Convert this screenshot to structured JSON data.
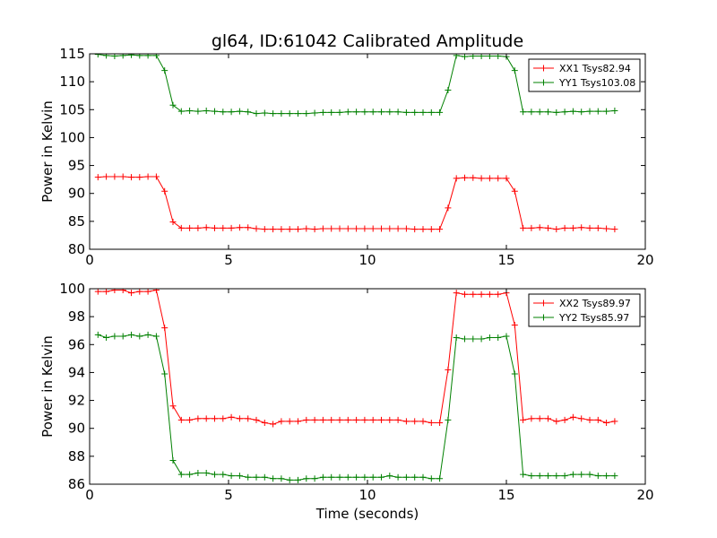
{
  "chart_data": [
    {
      "type": "line",
      "title": "gl64, ID:61042 Calibrated Amplitude",
      "xlabel": "",
      "ylabel": "Power in Kelvin",
      "xlim": [
        0,
        20
      ],
      "ylim": [
        80,
        115
      ],
      "xticks": [
        0,
        5,
        10,
        15,
        20
      ],
      "yticks": [
        80,
        85,
        90,
        95,
        100,
        105,
        110,
        115
      ],
      "legend": "top-right",
      "x": [
        0.3,
        0.6,
        0.9,
        1.2,
        1.5,
        1.8,
        2.1,
        2.4,
        2.7,
        3.0,
        3.3,
        3.6,
        3.9,
        4.2,
        4.5,
        4.8,
        5.1,
        5.4,
        5.7,
        6.0,
        6.3,
        6.6,
        6.9,
        7.2,
        7.5,
        7.8,
        8.1,
        8.4,
        8.7,
        9.0,
        9.3,
        9.6,
        9.9,
        10.2,
        10.5,
        10.8,
        11.1,
        11.4,
        11.7,
        12.0,
        12.3,
        12.6,
        12.9,
        13.2,
        13.5,
        13.8,
        14.1,
        14.4,
        14.7,
        15.0,
        15.3,
        15.6,
        15.9,
        16.2,
        16.5,
        16.8,
        17.1,
        17.4,
        17.7,
        18.0,
        18.3,
        18.6,
        18.9
      ],
      "series": [
        {
          "name": "XX1 Tsys82.94",
          "color": "#ff0000",
          "values": [
            92.9,
            93.0,
            93.0,
            93.0,
            92.9,
            92.9,
            93.0,
            93.0,
            90.4,
            84.9,
            83.8,
            83.8,
            83.8,
            83.9,
            83.8,
            83.8,
            83.8,
            83.9,
            83.9,
            83.7,
            83.6,
            83.6,
            83.6,
            83.6,
            83.6,
            83.7,
            83.6,
            83.7,
            83.7,
            83.7,
            83.7,
            83.7,
            83.7,
            83.7,
            83.7,
            83.7,
            83.7,
            83.7,
            83.6,
            83.6,
            83.6,
            83.6,
            87.4,
            92.7,
            92.8,
            92.8,
            92.7,
            92.7,
            92.7,
            92.7,
            90.4,
            83.8,
            83.8,
            83.9,
            83.8,
            83.6,
            83.8,
            83.8,
            83.9,
            83.8,
            83.8,
            83.7,
            83.6
          ]
        },
        {
          "name": "YY1 Tsys103.08",
          "color": "#008000",
          "values": [
            114.9,
            114.7,
            114.6,
            114.7,
            114.8,
            114.7,
            114.7,
            114.7,
            112.0,
            105.8,
            104.7,
            104.8,
            104.7,
            104.8,
            104.7,
            104.6,
            104.6,
            104.7,
            104.6,
            104.3,
            104.4,
            104.3,
            104.3,
            104.3,
            104.3,
            104.3,
            104.4,
            104.5,
            104.5,
            104.5,
            104.6,
            104.6,
            104.6,
            104.6,
            104.6,
            104.6,
            104.6,
            104.5,
            104.5,
            104.5,
            104.5,
            104.5,
            108.5,
            114.7,
            114.5,
            114.6,
            114.6,
            114.6,
            114.6,
            114.5,
            112.0,
            104.6,
            104.6,
            104.6,
            104.6,
            104.5,
            104.6,
            104.7,
            104.6,
            104.7,
            104.7,
            104.7,
            104.8
          ]
        }
      ]
    },
    {
      "type": "line",
      "title": "",
      "xlabel": "Time (seconds)",
      "ylabel": "Power in Kelvin",
      "xlim": [
        0,
        20
      ],
      "ylim": [
        86,
        100
      ],
      "xticks": [
        0,
        5,
        10,
        15,
        20
      ],
      "yticks": [
        86,
        88,
        90,
        92,
        94,
        96,
        98,
        100
      ],
      "legend": "top-right",
      "x": [
        0.3,
        0.6,
        0.9,
        1.2,
        1.5,
        1.8,
        2.1,
        2.4,
        2.7,
        3.0,
        3.3,
        3.6,
        3.9,
        4.2,
        4.5,
        4.8,
        5.1,
        5.4,
        5.7,
        6.0,
        6.3,
        6.6,
        6.9,
        7.2,
        7.5,
        7.8,
        8.1,
        8.4,
        8.7,
        9.0,
        9.3,
        9.6,
        9.9,
        10.2,
        10.5,
        10.8,
        11.1,
        11.4,
        11.7,
        12.0,
        12.3,
        12.6,
        12.9,
        13.2,
        13.5,
        13.8,
        14.1,
        14.4,
        14.7,
        15.0,
        15.3,
        15.6,
        15.9,
        16.2,
        16.5,
        16.8,
        17.1,
        17.4,
        17.7,
        18.0,
        18.3,
        18.6,
        18.9
      ],
      "series": [
        {
          "name": "XX2 Tsys89.97",
          "color": "#ff0000",
          "values": [
            99.8,
            99.8,
            99.9,
            99.9,
            99.7,
            99.8,
            99.8,
            99.9,
            97.2,
            91.6,
            90.6,
            90.6,
            90.7,
            90.7,
            90.7,
            90.7,
            90.8,
            90.7,
            90.7,
            90.6,
            90.4,
            90.3,
            90.5,
            90.5,
            90.5,
            90.6,
            90.6,
            90.6,
            90.6,
            90.6,
            90.6,
            90.6,
            90.6,
            90.6,
            90.6,
            90.6,
            90.6,
            90.5,
            90.5,
            90.5,
            90.4,
            90.4,
            94.2,
            99.7,
            99.6,
            99.6,
            99.6,
            99.6,
            99.6,
            99.7,
            97.4,
            90.6,
            90.7,
            90.7,
            90.7,
            90.5,
            90.6,
            90.8,
            90.7,
            90.6,
            90.6,
            90.4,
            90.5
          ]
        },
        {
          "name": "YY2 Tsys85.97",
          "color": "#008000",
          "values": [
            96.7,
            96.5,
            96.6,
            96.6,
            96.7,
            96.6,
            96.7,
            96.6,
            93.9,
            87.7,
            86.7,
            86.7,
            86.8,
            86.8,
            86.7,
            86.7,
            86.6,
            86.6,
            86.5,
            86.5,
            86.5,
            86.4,
            86.4,
            86.3,
            86.3,
            86.4,
            86.4,
            86.5,
            86.5,
            86.5,
            86.5,
            86.5,
            86.5,
            86.5,
            86.5,
            86.6,
            86.5,
            86.5,
            86.5,
            86.5,
            86.4,
            86.4,
            90.6,
            96.5,
            96.4,
            96.4,
            96.4,
            96.5,
            96.5,
            96.6,
            93.9,
            86.7,
            86.6,
            86.6,
            86.6,
            86.6,
            86.6,
            86.7,
            86.7,
            86.7,
            86.6,
            86.6,
            86.6
          ]
        }
      ]
    }
  ]
}
